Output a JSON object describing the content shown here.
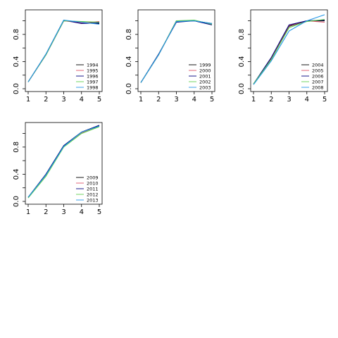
{
  "chart_data": [
    {
      "type": "line",
      "title": "",
      "xlabel": "",
      "ylabel": "",
      "x": [
        1,
        2,
        3,
        4,
        5
      ],
      "xlim": [
        1,
        5
      ],
      "ylim": [
        0,
        1.12
      ],
      "xticks": [
        "1",
        "2",
        "3",
        "4",
        "5"
      ],
      "yticks": [
        "0.0",
        "0.4",
        "0.8"
      ],
      "ytick_values": [
        0.0,
        0.4,
        0.8
      ],
      "grid": false,
      "legend_placement": "bottom-right",
      "series": [
        {
          "name": "1994",
          "color": "#000000",
          "values": [
            0.1,
            0.5,
            1.0,
            0.98,
            0.96
          ]
        },
        {
          "name": "1995",
          "color": "#df536b",
          "values": [
            0.1,
            0.5,
            1.0,
            0.97,
            0.99
          ]
        },
        {
          "name": "1996",
          "color": "#000080",
          "values": [
            0.1,
            0.51,
            1.01,
            0.96,
            0.97
          ]
        },
        {
          "name": "1997",
          "color": "#61d04f",
          "values": [
            0.1,
            0.5,
            1.0,
            0.99,
            0.98
          ]
        },
        {
          "name": "1998",
          "color": "#2297e6",
          "values": [
            0.1,
            0.51,
            1.01,
            0.98,
            0.95
          ]
        }
      ]
    },
    {
      "type": "line",
      "title": "",
      "xlabel": "",
      "ylabel": "",
      "x": [
        1,
        2,
        3,
        4,
        5
      ],
      "xlim": [
        1,
        5
      ],
      "ylim": [
        0,
        1.12
      ],
      "xticks": [
        "1",
        "2",
        "3",
        "4",
        "5"
      ],
      "yticks": [
        "0.0",
        "0.4",
        "0.8"
      ],
      "ytick_values": [
        0.0,
        0.4,
        0.8
      ],
      "grid": false,
      "legend_placement": "bottom-right",
      "series": [
        {
          "name": "1999",
          "color": "#000000",
          "values": [
            0.09,
            0.5,
            1.0,
            1.0,
            0.96
          ]
        },
        {
          "name": "2000",
          "color": "#df536b",
          "values": [
            0.09,
            0.5,
            0.99,
            1.0,
            0.95
          ]
        },
        {
          "name": "2001",
          "color": "#000080",
          "values": [
            0.09,
            0.51,
            0.98,
            1.0,
            0.94
          ]
        },
        {
          "name": "2002",
          "color": "#61d04f",
          "values": [
            0.09,
            0.5,
            1.0,
            1.01,
            0.95
          ]
        },
        {
          "name": "2003",
          "color": "#2297e6",
          "values": [
            0.09,
            0.5,
            0.99,
            1.0,
            0.96
          ]
        }
      ]
    },
    {
      "type": "line",
      "title": "",
      "xlabel": "",
      "ylabel": "",
      "x": [
        1,
        2,
        3,
        4,
        5
      ],
      "xlim": [
        1,
        5
      ],
      "ylim": [
        0,
        1.12
      ],
      "xticks": [
        "1",
        "2",
        "3",
        "4",
        "5"
      ],
      "yticks": [
        "0.0",
        "0.4",
        "0.8"
      ],
      "ytick_values": [
        0.0,
        0.4,
        0.8
      ],
      "grid": false,
      "legend_placement": "bottom-right",
      "series": [
        {
          "name": "2004",
          "color": "#000000",
          "values": [
            0.07,
            0.44,
            0.92,
            1.0,
            1.0
          ]
        },
        {
          "name": "2005",
          "color": "#df536b",
          "values": [
            0.07,
            0.45,
            0.93,
            1.0,
            0.98
          ]
        },
        {
          "name": "2006",
          "color": "#000080",
          "values": [
            0.07,
            0.46,
            0.94,
            1.0,
            1.01
          ]
        },
        {
          "name": "2007",
          "color": "#61d04f",
          "values": [
            0.07,
            0.43,
            0.9,
            0.99,
            1.02
          ]
        },
        {
          "name": "2008",
          "color": "#2297e6",
          "values": [
            0.06,
            0.41,
            0.85,
            1.0,
            1.09
          ]
        }
      ]
    },
    {
      "type": "line",
      "title": "",
      "xlabel": "",
      "ylabel": "",
      "x": [
        1,
        2,
        3,
        4,
        5
      ],
      "xlim": [
        1,
        5
      ],
      "ylim": [
        0,
        1.12
      ],
      "xticks": [
        "1",
        "2",
        "3",
        "4",
        "5"
      ],
      "yticks": [
        "0.0",
        "0.4",
        "0.8"
      ],
      "ytick_values": [
        0.0,
        0.4,
        0.8
      ],
      "grid": false,
      "legend_placement": "bottom-right",
      "series": [
        {
          "name": "2009",
          "color": "#000000",
          "values": [
            0.06,
            0.4,
            0.82,
            1.02,
            1.12
          ]
        },
        {
          "name": "2010",
          "color": "#df536b",
          "values": [
            0.06,
            0.39,
            0.81,
            1.01,
            1.11
          ]
        },
        {
          "name": "2011",
          "color": "#000080",
          "values": [
            0.06,
            0.4,
            0.82,
            1.02,
            1.12
          ]
        },
        {
          "name": "2012",
          "color": "#61d04f",
          "values": [
            0.05,
            0.37,
            0.8,
            1.0,
            1.1
          ]
        },
        {
          "name": "2013",
          "color": "#2297e6",
          "values": [
            0.06,
            0.39,
            0.81,
            1.02,
            1.11
          ]
        }
      ]
    }
  ]
}
